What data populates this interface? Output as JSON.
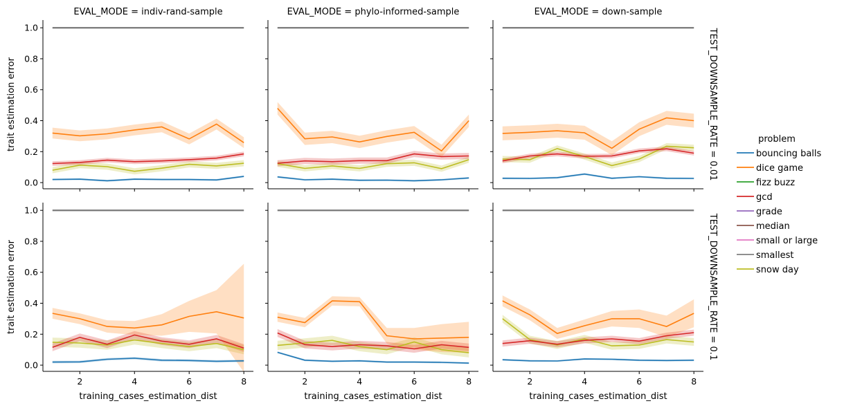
{
  "chart_data": {
    "type": "line",
    "layout": "facet-grid",
    "x": [
      1,
      2,
      3,
      4,
      5,
      6,
      7,
      8
    ],
    "xlabel": "training_cases_estimation_dist",
    "ylabel": "trait estimation error",
    "xlim": [
      0.65,
      8.35
    ],
    "ylim": [
      -0.04,
      1.05
    ],
    "xticks": [
      "2",
      "4",
      "6",
      "8"
    ],
    "yticks": [
      "0.0",
      "0.2",
      "0.4",
      "0.6",
      "0.8",
      "1.0"
    ],
    "columns": [
      "EVAL_MODE = indiv-rand-sample",
      "EVAL_MODE = phylo-informed-sample",
      "EVAL_MODE = down-sample"
    ],
    "rows": [
      "TEST_DOWNSAMPLE_RATE = 0.01",
      "TEST_DOWNSAMPLE_RATE = 0.1"
    ],
    "legend": {
      "title": "problem",
      "position": "right",
      "entries": [
        {
          "name": "bouncing balls",
          "color": "#1f77b4"
        },
        {
          "name": "dice game",
          "color": "#ff7f0e"
        },
        {
          "name": "fizz buzz",
          "color": "#2ca02c"
        },
        {
          "name": "gcd",
          "color": "#d62728"
        },
        {
          "name": "grade",
          "color": "#9467bd"
        },
        {
          "name": "median",
          "color": "#8c564b"
        },
        {
          "name": "small or large",
          "color": "#e377c2"
        },
        {
          "name": "smallest",
          "color": "#7f7f7f"
        },
        {
          "name": "snow day",
          "color": "#bcbd22"
        }
      ]
    },
    "panels": [
      {
        "row": 0,
        "col": 0,
        "series": [
          {
            "name": "smallest",
            "values": [
              1,
              1,
              1,
              1,
              1,
              1,
              1,
              1
            ],
            "band": 0.002
          },
          {
            "name": "bouncing balls",
            "values": [
              0.02,
              0.022,
              0.012,
              0.022,
              0.02,
              0.02,
              0.017,
              0.04
            ],
            "band": 0.006
          },
          {
            "name": "snow day",
            "values": [
              0.08,
              0.113,
              0.103,
              0.073,
              0.093,
              0.118,
              0.108,
              0.125
            ],
            "band": 0.02
          },
          {
            "name": "gcd",
            "values": [
              0.123,
              0.13,
              0.145,
              0.135,
              0.14,
              0.148,
              0.158,
              0.185
            ],
            "band": 0.015
          },
          {
            "name": "dice game",
            "values": [
              0.32,
              0.302,
              0.315,
              0.34,
              0.36,
              0.282,
              0.378,
              0.258
            ],
            "band": 0.035
          }
        ]
      },
      {
        "row": 0,
        "col": 1,
        "series": [
          {
            "name": "smallest",
            "values": [
              1,
              1,
              1,
              1,
              1,
              1,
              1,
              1
            ],
            "band": 0.002
          },
          {
            "name": "bouncing balls",
            "values": [
              0.037,
              0.018,
              0.022,
              0.015,
              0.016,
              0.012,
              0.018,
              0.03
            ],
            "band": 0.006
          },
          {
            "name": "snow day",
            "values": [
              0.122,
              0.092,
              0.108,
              0.092,
              0.122,
              0.128,
              0.09,
              0.148
            ],
            "band": 0.02
          },
          {
            "name": "gcd",
            "values": [
              0.125,
              0.14,
              0.135,
              0.142,
              0.142,
              0.185,
              0.168,
              0.172
            ],
            "band": 0.02
          },
          {
            "name": "dice game",
            "values": [
              0.48,
              0.283,
              0.295,
              0.263,
              0.298,
              0.325,
              0.205,
              0.4
            ],
            "band": 0.04
          }
        ]
      },
      {
        "row": 0,
        "col": 2,
        "series": [
          {
            "name": "smallest",
            "values": [
              1,
              1,
              1,
              1,
              1,
              1,
              1,
              1
            ],
            "band": 0.002
          },
          {
            "name": "bouncing balls",
            "values": [
              0.028,
              0.027,
              0.032,
              0.055,
              0.028,
              0.038,
              0.028,
              0.027
            ],
            "band": 0.006
          },
          {
            "name": "snow day",
            "values": [
              0.152,
              0.148,
              0.22,
              0.168,
              0.11,
              0.152,
              0.235,
              0.225
            ],
            "band": 0.02
          },
          {
            "name": "gcd",
            "values": [
              0.14,
              0.172,
              0.185,
              0.17,
              0.172,
              0.205,
              0.218,
              0.19
            ],
            "band": 0.015
          },
          {
            "name": "dice game",
            "values": [
              0.318,
              0.325,
              0.335,
              0.322,
              0.222,
              0.345,
              0.418,
              0.4
            ],
            "band": 0.045
          }
        ]
      },
      {
        "row": 1,
        "col": 0,
        "series": [
          {
            "name": "smallest",
            "values": [
              1,
              1,
              1,
              1,
              1,
              1,
              1,
              1
            ],
            "band": 0.002
          },
          {
            "name": "bouncing balls",
            "values": [
              0.02,
              0.021,
              0.038,
              0.045,
              0.032,
              0.03,
              0.025,
              0.028
            ],
            "band": 0.008
          },
          {
            "name": "snow day",
            "values": [
              0.148,
              0.143,
              0.13,
              0.163,
              0.14,
              0.12,
              0.14,
              0.1
            ],
            "band": 0.03
          },
          {
            "name": "gcd",
            "values": [
              0.115,
              0.18,
              0.135,
              0.195,
              0.155,
              0.135,
              0.17,
              0.11
            ],
            "band": 0.025
          },
          {
            "name": "dice game",
            "values": [
              0.335,
              0.3,
              0.25,
              0.24,
              0.26,
              0.315,
              0.345,
              0.305
            ],
            "band": [
              0.035,
              0.035,
              0.04,
              0.045,
              0.07,
              0.1,
              0.14,
              0.35
            ]
          }
        ]
      },
      {
        "row": 1,
        "col": 1,
        "series": [
          {
            "name": "smallest",
            "values": [
              1,
              1,
              1,
              1,
              1,
              1,
              1,
              1
            ],
            "band": 0.002
          },
          {
            "name": "bouncing balls",
            "values": [
              0.083,
              0.032,
              0.025,
              0.028,
              0.02,
              0.02,
              0.018,
              0.013
            ],
            "band": 0.006
          },
          {
            "name": "snow day",
            "values": [
              0.128,
              0.143,
              0.16,
              0.12,
              0.1,
              0.15,
              0.1,
              0.08
            ],
            "band": 0.03
          },
          {
            "name": "gcd",
            "values": [
              0.208,
              0.133,
              0.12,
              0.132,
              0.125,
              0.105,
              0.132,
              0.115
            ],
            "band": 0.025
          },
          {
            "name": "dice game",
            "values": [
              0.31,
              0.275,
              0.415,
              0.41,
              0.19,
              0.17,
              0.175,
              0.18
            ],
            "band": [
              0.03,
              0.03,
              0.03,
              0.03,
              0.05,
              0.07,
              0.09,
              0.1
            ]
          }
        ]
      },
      {
        "row": 1,
        "col": 2,
        "series": [
          {
            "name": "smallest",
            "values": [
              1,
              1,
              1,
              1,
              1,
              1,
              1,
              1
            ],
            "band": 0.002
          },
          {
            "name": "bouncing balls",
            "values": [
              0.035,
              0.028,
              0.027,
              0.04,
              0.038,
              0.032,
              0.03,
              0.032
            ],
            "band": 0.006
          },
          {
            "name": "snow day",
            "values": [
              0.3,
              0.165,
              0.13,
              0.17,
              0.125,
              0.13,
              0.165,
              0.15
            ],
            "band": 0.025
          },
          {
            "name": "gcd",
            "values": [
              0.14,
              0.158,
              0.135,
              0.16,
              0.17,
              0.155,
              0.19,
              0.21
            ],
            "band": 0.02
          },
          {
            "name": "dice game",
            "values": [
              0.415,
              0.325,
              0.205,
              0.255,
              0.3,
              0.3,
              0.25,
              0.335
            ],
            "band": [
              0.035,
              0.035,
              0.035,
              0.04,
              0.05,
              0.06,
              0.07,
              0.09
            ]
          }
        ]
      }
    ]
  }
}
